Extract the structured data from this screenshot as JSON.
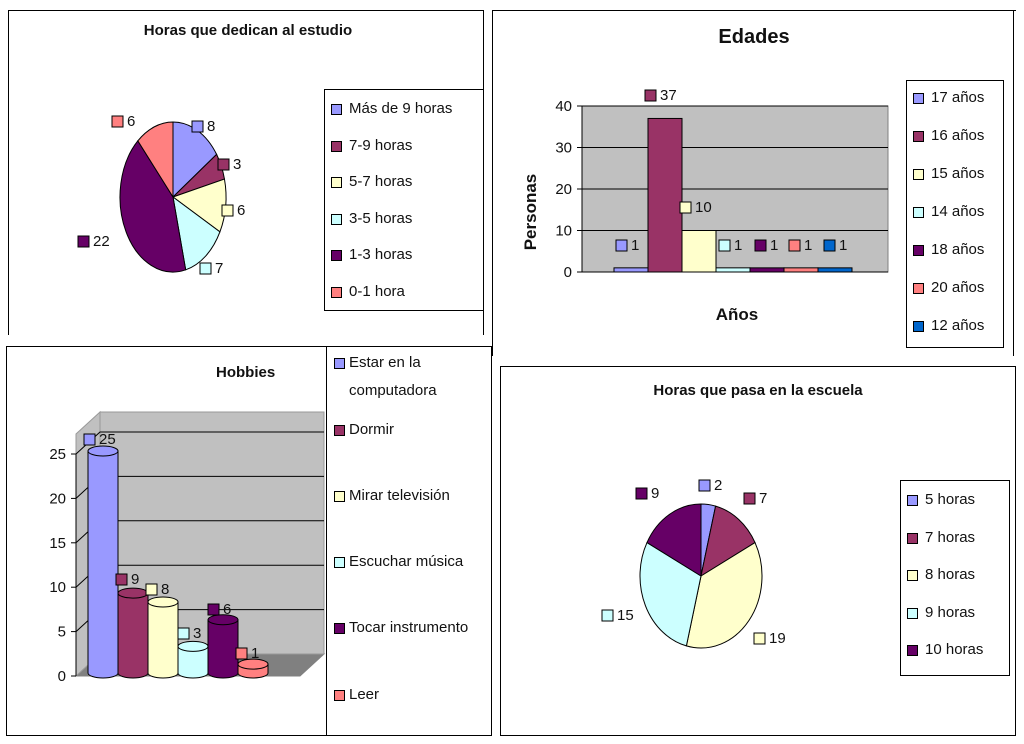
{
  "chart_data": [
    {
      "type": "pie",
      "title": "Horas que dedican al estudio",
      "categories": [
        "Más de 9 horas",
        "7-9 horas",
        "5-7 horas",
        "3-5 horas",
        "1-3 horas",
        "0-1 hora"
      ],
      "values": [
        8,
        3,
        6,
        7,
        22,
        6
      ],
      "colors": [
        "#9999ff",
        "#993366",
        "#ffffcc",
        "#ccffff",
        "#660066",
        "#ff8080"
      ],
      "legend": "right"
    },
    {
      "type": "bar",
      "title": "Edades",
      "xlabel": "Años",
      "ylabel": "Personas",
      "ylim": [
        0,
        40
      ],
      "yticks": [
        "0",
        "10",
        "20",
        "30",
        "40"
      ],
      "series": [
        {
          "name": "17 años",
          "values": [
            1
          ],
          "color": "#9999ff"
        },
        {
          "name": "16 años",
          "values": [
            37
          ],
          "color": "#993366"
        },
        {
          "name": "15 años",
          "values": [
            10
          ],
          "color": "#ffffcc"
        },
        {
          "name": "14 años",
          "values": [
            1
          ],
          "color": "#ccffff"
        },
        {
          "name": "18 años",
          "values": [
            1
          ],
          "color": "#660066"
        },
        {
          "name": "20 años",
          "values": [
            1
          ],
          "color": "#ff8080"
        },
        {
          "name": "12 años",
          "values": [
            1
          ],
          "color": "#0066cc"
        }
      ],
      "grid": true,
      "legend": "right"
    },
    {
      "type": "bar",
      "title": "Hobbies",
      "categories": [
        "Estar en la computadora",
        "Dormir",
        "Mirar televisión",
        "Escuchar música",
        "Tocar instrumento",
        "Leer"
      ],
      "values": [
        25,
        9,
        8,
        3,
        6,
        1
      ],
      "colors": [
        "#9999ff",
        "#993366",
        "#ffffcc",
        "#ccffff",
        "#660066",
        "#ff8080"
      ],
      "ylim": [
        0,
        25
      ],
      "yticks": [
        "0",
        "5",
        "10",
        "15",
        "20",
        "25"
      ],
      "grid": true,
      "legend": "right"
    },
    {
      "type": "pie",
      "title": "Horas que pasa en la escuela",
      "categories": [
        "5 horas",
        "7 horas",
        "8 horas",
        "9 horas",
        "10 horas"
      ],
      "values": [
        2,
        7,
        19,
        15,
        9
      ],
      "colors": [
        "#9999ff",
        "#993366",
        "#ffffcc",
        "#ccffff",
        "#660066"
      ],
      "legend": "right"
    }
  ],
  "legend_lines": {
    "hobbies": [
      [
        "Estar en la",
        "computadora"
      ],
      [
        "Dormir"
      ],
      [
        "Mirar televisión"
      ],
      [
        "Escuchar música"
      ],
      [
        "Tocar instrumento"
      ],
      [
        "Leer"
      ]
    ]
  }
}
